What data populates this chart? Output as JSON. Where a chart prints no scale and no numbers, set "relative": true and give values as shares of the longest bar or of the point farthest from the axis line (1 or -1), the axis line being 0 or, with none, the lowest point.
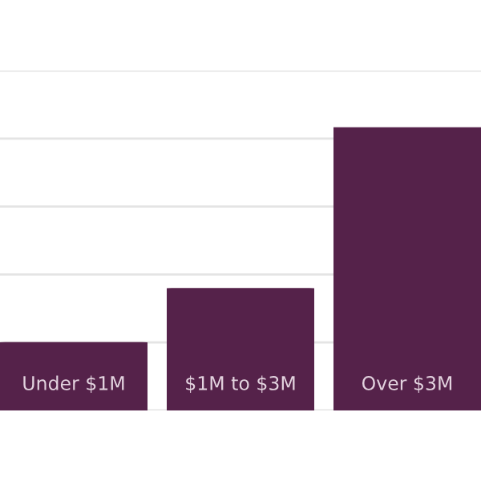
{
  "chart_data": {
    "type": "bar",
    "relative": true,
    "categories": [
      "Under $1M",
      "$1M to $3M",
      "Over $3M"
    ],
    "values": [
      0.241,
      0.432,
      1
    ],
    "color": "#55224a",
    "grid": "y"
  }
}
